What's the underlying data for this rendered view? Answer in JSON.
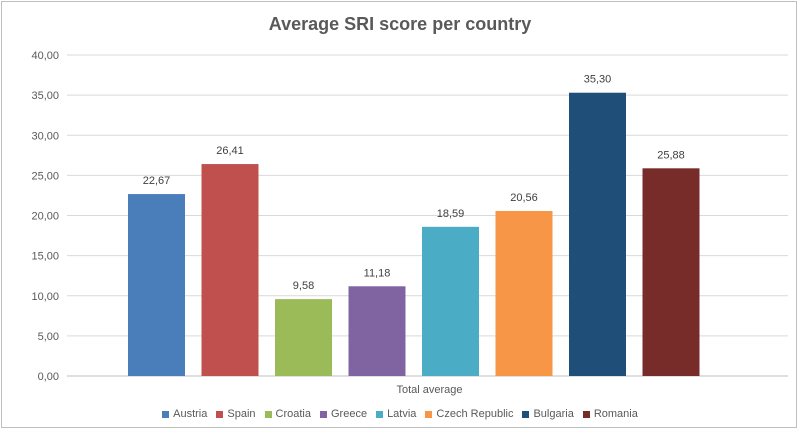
{
  "chart_data": {
    "type": "bar",
    "title": "Average SRI score per country",
    "xlabel": "Total average",
    "ylabel": "",
    "ylim": [
      0,
      40
    ],
    "yticks": [
      "0,00",
      "5,00",
      "10,00",
      "15,00",
      "20,00",
      "25,00",
      "30,00",
      "35,00",
      "40,00"
    ],
    "categories": [
      "Total average"
    ],
    "series": [
      {
        "name": "Austria",
        "value": 22.67,
        "label": "22,67",
        "color": "#4a7ebb"
      },
      {
        "name": "Spain",
        "value": 26.41,
        "label": "26,41",
        "color": "#c0504d"
      },
      {
        "name": "Croatia",
        "value": 9.58,
        "label": "9,58",
        "color": "#9bbb59"
      },
      {
        "name": "Greece",
        "value": 11.18,
        "label": "11,18",
        "color": "#8064a2"
      },
      {
        "name": "Latvia",
        "value": 18.59,
        "label": "18,59",
        "color": "#4bacc6"
      },
      {
        "name": "Czech Republic",
        "value": 20.56,
        "label": "20,56",
        "color": "#f79646"
      },
      {
        "name": "Bulgaria",
        "value": 35.3,
        "label": "35,30",
        "color": "#1f4e79"
      },
      {
        "name": "Romania",
        "value": 25.88,
        "label": "25,88",
        "color": "#772c2a"
      }
    ],
    "grid": true,
    "legend_position": "bottom"
  }
}
